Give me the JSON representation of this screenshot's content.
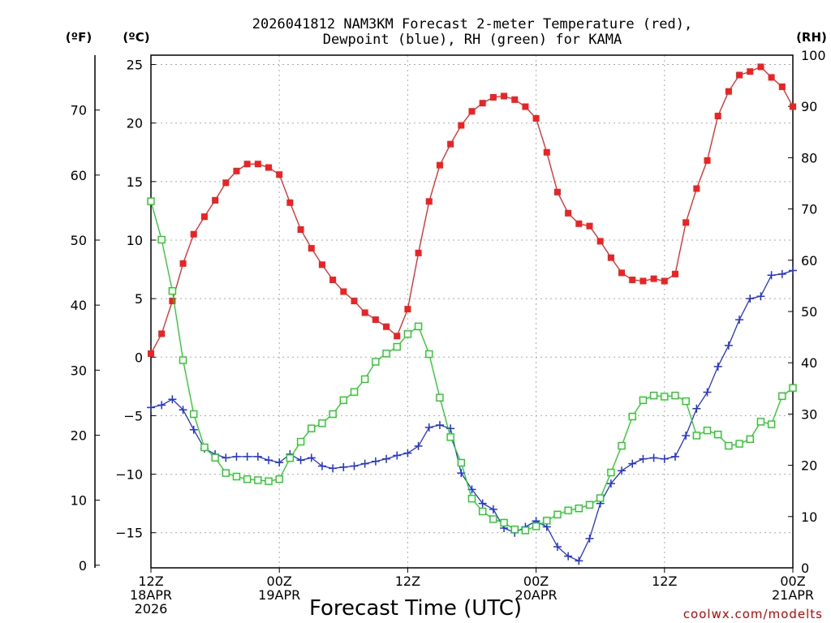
{
  "chart_data": {
    "type": "line",
    "title_line1": "2026041812 NAM3KM Forecast 2-meter Temperature (red),",
    "title_line2": "Dewpoint (blue), RH (green) for KAMA",
    "units": {
      "fahrenheit": "(ºF)",
      "celsius": "(ºC)",
      "rh": "(RH)"
    },
    "xlabel": "Forecast Time (UTC)",
    "credit": "coolwx.com/modelts",
    "x_range_hours": [
      0,
      60
    ],
    "y_celsius_range": [
      -18,
      25.8
    ],
    "rh_range": [
      0,
      100
    ],
    "x_ticks": [
      {
        "hour": 0,
        "lines": [
          "12Z",
          "18APR",
          "2026"
        ]
      },
      {
        "hour": 12,
        "lines": [
          "00Z",
          "19APR"
        ]
      },
      {
        "hour": 24,
        "lines": [
          "12Z"
        ]
      },
      {
        "hour": 36,
        "lines": [
          "00Z",
          "20APR"
        ]
      },
      {
        "hour": 48,
        "lines": [
          "12Z"
        ]
      },
      {
        "hour": 60,
        "lines": [
          "00Z",
          "21APR"
        ]
      }
    ],
    "celsius_ticks": [
      -15,
      -10,
      -5,
      0,
      5,
      10,
      15,
      20,
      25
    ],
    "fahrenheit_ticks": [
      0,
      10,
      20,
      30,
      40,
      50,
      60,
      70
    ],
    "rh_ticks": [
      0,
      10,
      20,
      30,
      40,
      50,
      60,
      70,
      80,
      90,
      100
    ],
    "series": [
      {
        "name": "Temperature (°C)",
        "color": "#ee2222",
        "marker": "filled-square",
        "axis": "celsius",
        "hours": [
          0,
          1,
          2,
          3,
          4,
          5,
          6,
          7,
          8,
          9,
          10,
          11,
          12,
          13,
          14,
          15,
          16,
          17,
          18,
          19,
          20,
          21,
          22,
          23,
          24,
          25,
          26,
          27,
          28,
          29,
          30,
          31,
          32,
          33,
          34,
          35,
          36,
          37,
          38,
          39,
          40,
          41,
          42,
          43,
          44,
          45,
          46,
          47,
          48,
          49,
          50,
          51,
          52,
          53,
          54,
          55,
          56,
          57,
          58,
          59,
          60
        ],
        "values": [
          0.3,
          2.0,
          4.8,
          8.0,
          10.5,
          12.0,
          13.4,
          14.9,
          15.9,
          16.5,
          16.5,
          16.2,
          15.6,
          13.2,
          10.9,
          9.3,
          7.9,
          6.6,
          5.6,
          4.8,
          3.8,
          3.2,
          2.6,
          1.8,
          4.1,
          8.9,
          13.3,
          16.4,
          18.2,
          19.8,
          21.0,
          21.7,
          22.2,
          22.3,
          22.0,
          21.4,
          20.4,
          17.5,
          14.1,
          12.3,
          11.4,
          11.2,
          9.9,
          8.5,
          7.2,
          6.6,
          6.5,
          6.7,
          6.5,
          7.1,
          11.5,
          14.4,
          16.8,
          20.6,
          22.7,
          24.1,
          24.4,
          24.8,
          23.9,
          23.1,
          21.4
        ]
      },
      {
        "name": "Dewpoint (°C)",
        "color": "#2233dd",
        "marker": "plus",
        "axis": "celsius",
        "hours": [
          0,
          1,
          2,
          3,
          4,
          5,
          6,
          7,
          8,
          9,
          10,
          11,
          12,
          13,
          14,
          15,
          16,
          17,
          18,
          19,
          20,
          21,
          22,
          23,
          24,
          25,
          26,
          27,
          28,
          29,
          30,
          31,
          32,
          33,
          34,
          35,
          36,
          37,
          38,
          39,
          40,
          41,
          42,
          43,
          44,
          45,
          46,
          47,
          48,
          49,
          50,
          51,
          52,
          53,
          54,
          55,
          56,
          57,
          58,
          59,
          60
        ],
        "values": [
          -4.3,
          -4.1,
          -3.6,
          -4.5,
          -6.2,
          -7.8,
          -8.3,
          -8.6,
          -8.5,
          -8.5,
          -8.5,
          -8.8,
          -9.0,
          -8.3,
          -8.8,
          -8.6,
          -9.3,
          -9.5,
          -9.4,
          -9.3,
          -9.1,
          -8.9,
          -8.7,
          -8.4,
          -8.2,
          -7.6,
          -6.0,
          -5.8,
          -6.1,
          -9.9,
          -11.3,
          -12.5,
          -13.0,
          -14.6,
          -15.0,
          -14.5,
          -14.0,
          -14.5,
          -16.2,
          -17.0,
          -17.4,
          -15.5,
          -12.5,
          -10.8,
          -9.7,
          -9.1,
          -8.7,
          -8.6,
          -8.7,
          -8.5,
          -6.7,
          -4.4,
          -3.0,
          -0.8,
          1.0,
          3.2,
          5.0,
          5.2,
          7.0,
          7.1,
          7.4
        ]
      },
      {
        "name": "RH (%)",
        "color": "#22cc22",
        "marker": "open-square",
        "axis": "rh",
        "hours": [
          0,
          1,
          2,
          3,
          4,
          5,
          6,
          7,
          8,
          9,
          10,
          11,
          12,
          13,
          14,
          15,
          16,
          17,
          18,
          19,
          20,
          21,
          22,
          23,
          24,
          25,
          26,
          27,
          28,
          29,
          30,
          31,
          32,
          33,
          34,
          35,
          36,
          37,
          38,
          39,
          40,
          41,
          42,
          43,
          44,
          45,
          46,
          47,
          48,
          49,
          50,
          51,
          52,
          53,
          54,
          55,
          56,
          57,
          58,
          59,
          60
        ],
        "values": [
          71.5,
          64.0,
          54.0,
          40.5,
          30.0,
          23.5,
          21.5,
          18.5,
          17.8,
          17.3,
          17.1,
          16.9,
          17.3,
          21.4,
          24.6,
          27.2,
          28.2,
          30.0,
          32.7,
          34.3,
          36.8,
          40.2,
          41.8,
          43.1,
          45.6,
          47.1,
          41.7,
          33.2,
          25.5,
          20.5,
          13.5,
          11.0,
          9.5,
          8.8,
          7.5,
          7.3,
          8.1,
          9.2,
          10.4,
          11.2,
          11.6,
          12.3,
          13.6,
          18.6,
          23.8,
          29.5,
          32.7,
          33.6,
          33.4,
          33.6,
          32.5,
          25.8,
          26.8,
          26.0,
          23.8,
          24.2,
          25.1,
          28.5,
          28.0,
          33.5,
          35.1
        ]
      }
    ]
  }
}
